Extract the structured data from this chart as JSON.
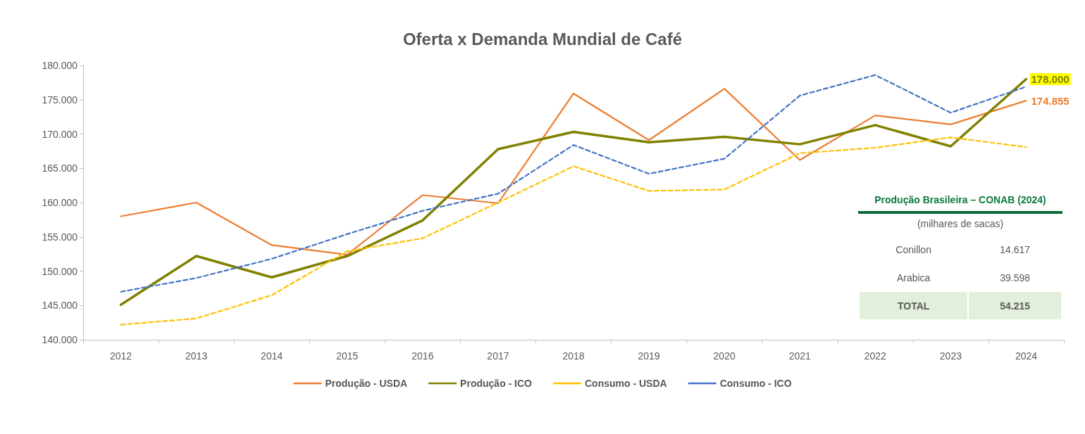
{
  "chart_data": [
    {
      "type": "line",
      "title": "Oferta x Demanda Mundial de Café",
      "categories": [
        "2012",
        "2013",
        "2014",
        "2015",
        "2016",
        "2017",
        "2018",
        "2019",
        "2020",
        "2021",
        "2022",
        "2023",
        "2024"
      ],
      "ylim": [
        140000,
        180000
      ],
      "yticks": [
        {
          "value": 140000,
          "label": "140.000"
        },
        {
          "value": 145000,
          "label": "145.000"
        },
        {
          "value": 150000,
          "label": "150.000"
        },
        {
          "value": 155000,
          "label": "155.000"
        },
        {
          "value": 160000,
          "label": "160.000"
        },
        {
          "value": 165000,
          "label": "165.000"
        },
        {
          "value": 170000,
          "label": "170.000"
        },
        {
          "value": 175000,
          "label": "175.000"
        },
        {
          "value": 180000,
          "label": "180.000"
        }
      ],
      "grid": false,
      "legend": "bottom",
      "marker": "none",
      "series": [
        {
          "name": "Produção - USDA",
          "color": "#ed7d31",
          "line_style": "solid",
          "values": [
            158000,
            160000,
            153800,
            152400,
            161100,
            159900,
            175900,
            169100,
            176600,
            166200,
            172700,
            171400,
            174855
          ],
          "value_labels": [
            null,
            null,
            null,
            null,
            null,
            null,
            null,
            null,
            null,
            null,
            null,
            null,
            "174.855"
          ]
        },
        {
          "name": "Produção - ICO",
          "color": "#808000",
          "line_style": "solid",
          "values": [
            145100,
            152200,
            149100,
            152200,
            157400,
            167800,
            170300,
            168800,
            169600,
            168500,
            171300,
            168200,
            178000
          ],
          "value_labels": [
            null,
            null,
            null,
            null,
            null,
            null,
            null,
            null,
            null,
            null,
            null,
            null,
            "178.000"
          ]
        },
        {
          "name": "Consumo - USDA",
          "color": "#ffc000",
          "line_style": "dashed",
          "values": [
            142200,
            143100,
            146500,
            152900,
            154800,
            160000,
            165300,
            161700,
            161900,
            167200,
            168000,
            169500,
            168100
          ]
        },
        {
          "name": "Consumo - ICO",
          "color": "#4472c4",
          "line_style": "dashed",
          "values": [
            147000,
            149000,
            151800,
            155400,
            158800,
            161300,
            168400,
            164200,
            166400,
            175600,
            178600,
            173100,
            176900
          ]
        }
      ]
    },
    {
      "type": "other",
      "title": "Produção Brasileira – CONAB (2024)",
      "subtitle": "(milhares de sacas)",
      "categories": [
        "Conillon",
        "Arabica",
        "TOTAL"
      ],
      "value_labels": [
        "14.617",
        "39.598",
        "54.215"
      ]
    }
  ]
}
